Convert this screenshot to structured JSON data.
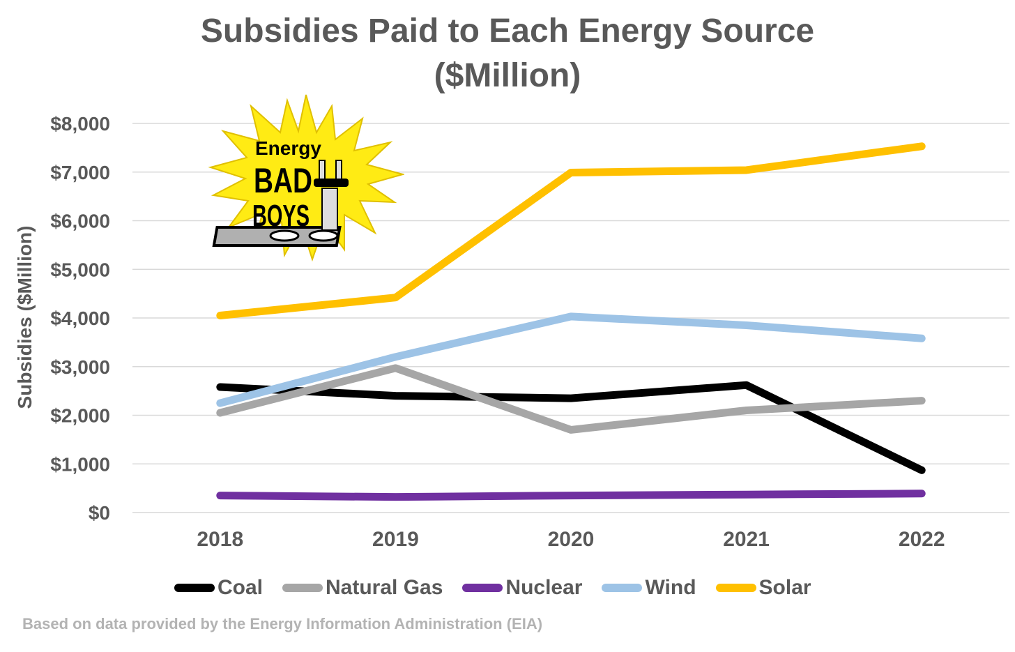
{
  "title_line1": "Subsidies Paid to Each Energy Source",
  "title_line2": "($Million)",
  "source_note": "Based on data provided by the Energy Information Administration (EIA)",
  "logo": {
    "text_top": "Energy",
    "text_mid": "BAD",
    "text_bottom": "BOYS"
  },
  "chart_data": {
    "type": "line",
    "ylabel": "Subsidies ($Million)",
    "xlabel": "",
    "categories": [
      "2018",
      "2019",
      "2020",
      "2021",
      "2022"
    ],
    "ylim": [
      0,
      8000
    ],
    "yticks": [
      0,
      1000,
      2000,
      3000,
      4000,
      5000,
      6000,
      7000,
      8000
    ],
    "ytick_labels": [
      "$0",
      "$1,000",
      "$2,000",
      "$3,000",
      "$4,000",
      "$5,000",
      "$6,000",
      "$7,000",
      "$8,000"
    ],
    "grid": true,
    "legend_position": "bottom",
    "series": [
      {
        "name": "Coal",
        "color": "#000000",
        "values": [
          2580,
          2400,
          2350,
          2620,
          870
        ]
      },
      {
        "name": "Natural Gas",
        "color": "#a6a6a6",
        "values": [
          2050,
          2970,
          1700,
          2100,
          2300
        ]
      },
      {
        "name": "Nuclear",
        "color": "#7030a0",
        "values": [
          350,
          320,
          350,
          370,
          390
        ]
      },
      {
        "name": "Wind",
        "color": "#9dc3e6",
        "values": [
          2250,
          3200,
          4030,
          3850,
          3580
        ]
      },
      {
        "name": "Solar",
        "color": "#ffc000",
        "values": [
          4050,
          4420,
          6990,
          7040,
          7530
        ]
      }
    ]
  }
}
